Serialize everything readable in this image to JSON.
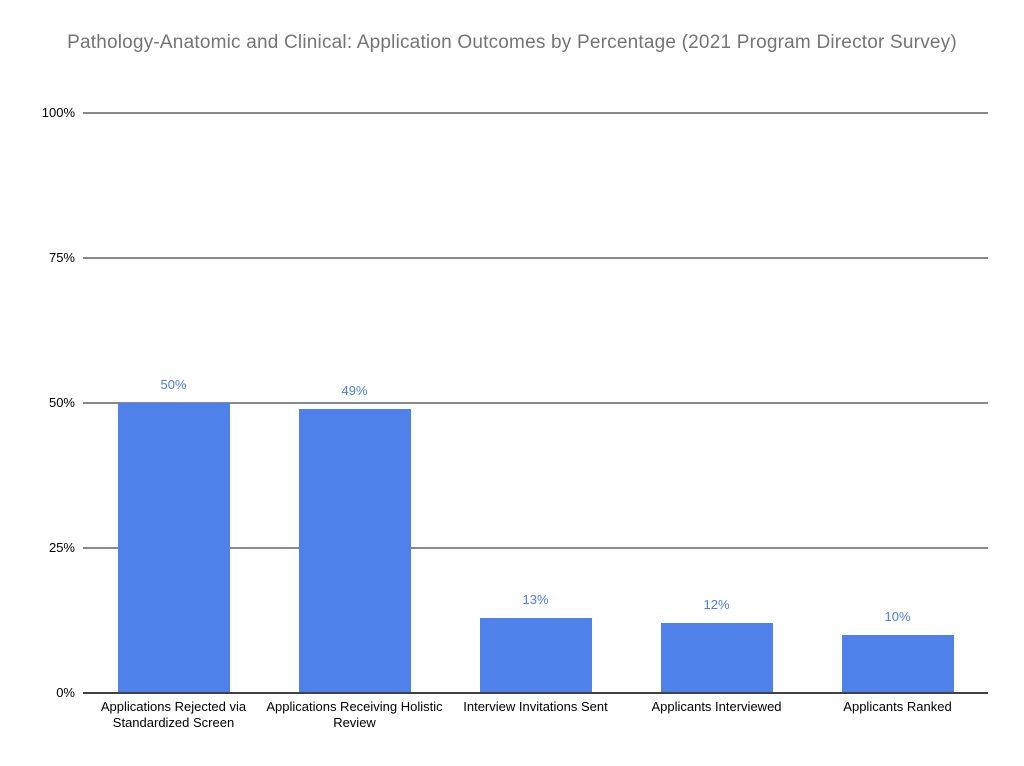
{
  "chart_data": {
    "type": "bar",
    "title": "Pathology-Anatomic and Clinical: Application Outcomes by Percentage (2021 Program Director Survey)",
    "categories": [
      "Applications Rejected via Standardized Screen",
      "Applications Receiving Holistic Review",
      "Interview Invitations Sent",
      "Applicants Interviewed",
      "Applicants Ranked"
    ],
    "values": [
      50,
      49,
      13,
      12,
      10
    ],
    "data_labels": [
      "50%",
      "49%",
      "13%",
      "12%",
      "10%"
    ],
    "xlabel": "",
    "ylabel": "",
    "ylim": [
      0,
      100
    ],
    "yticks": [
      {
        "label": "0%",
        "value": 0
      },
      {
        "label": "25%",
        "value": 25
      },
      {
        "label": "50%",
        "value": 50
      },
      {
        "label": "75%",
        "value": 75
      },
      {
        "label": "100%",
        "value": 100
      }
    ],
    "grid": true,
    "legend": "none",
    "colors": {
      "bar": "#4e81e9",
      "data_label": "#4a7de8",
      "title": "#757575",
      "axis_text": "#000000",
      "gridline": "#8a8a8a",
      "baseline": "#424242",
      "background": "#ffffff"
    }
  }
}
